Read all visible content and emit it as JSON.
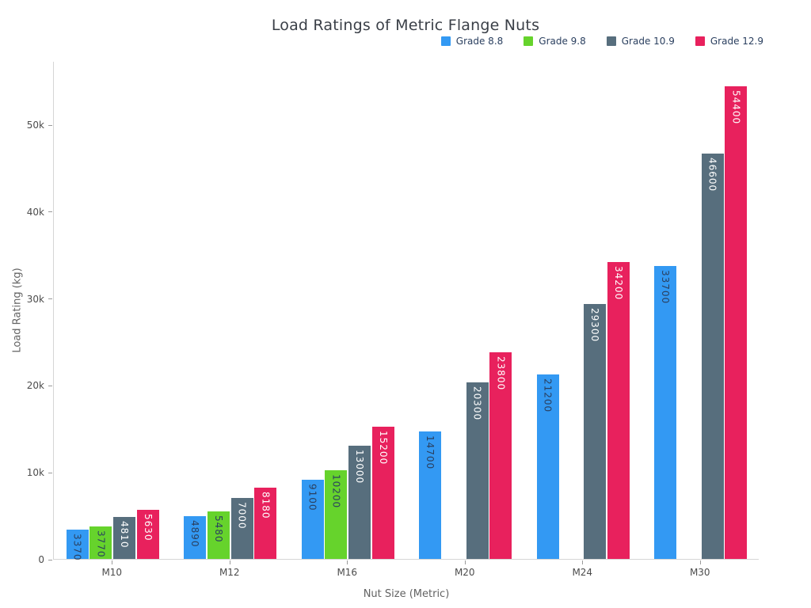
{
  "chart_data": {
    "type": "bar",
    "title": "Load Ratings of Metric Flange Nuts",
    "xlabel": "Nut Size (Metric)",
    "ylabel": "Load Rating (kg)",
    "categories": [
      "M10",
      "M12",
      "M16",
      "M20",
      "M24",
      "M30"
    ],
    "series": [
      {
        "name": "Grade 8.8",
        "color": "#3399f3",
        "label_color": "#2a3f5f",
        "values": [
          3370,
          4890,
          9100,
          14700,
          21200,
          33700
        ]
      },
      {
        "name": "Grade 9.8",
        "color": "#66d32c",
        "label_color": "#2a3f5f",
        "values": [
          3770,
          5480,
          10200,
          null,
          null,
          null
        ]
      },
      {
        "name": "Grade 10.9",
        "color": "#576e7d",
        "label_color": "#ffffff",
        "values": [
          4810,
          7000,
          13000,
          20300,
          29300,
          46600
        ]
      },
      {
        "name": "Grade 12.9",
        "color": "#e8215d",
        "label_color": "#ffffff",
        "values": [
          5630,
          8180,
          15200,
          23800,
          34200,
          54400
        ]
      }
    ],
    "yticks": [
      {
        "value": 0,
        "label": "0"
      },
      {
        "value": 10000,
        "label": "10k"
      },
      {
        "value": 20000,
        "label": "20k"
      },
      {
        "value": 30000,
        "label": "30k"
      },
      {
        "value": 40000,
        "label": "40k"
      },
      {
        "value": 50000,
        "label": "50k"
      }
    ],
    "ylim": [
      0,
      57300
    ],
    "bar_labels": "inside-top-rotated",
    "grid": false,
    "legend_position": "top-right"
  }
}
